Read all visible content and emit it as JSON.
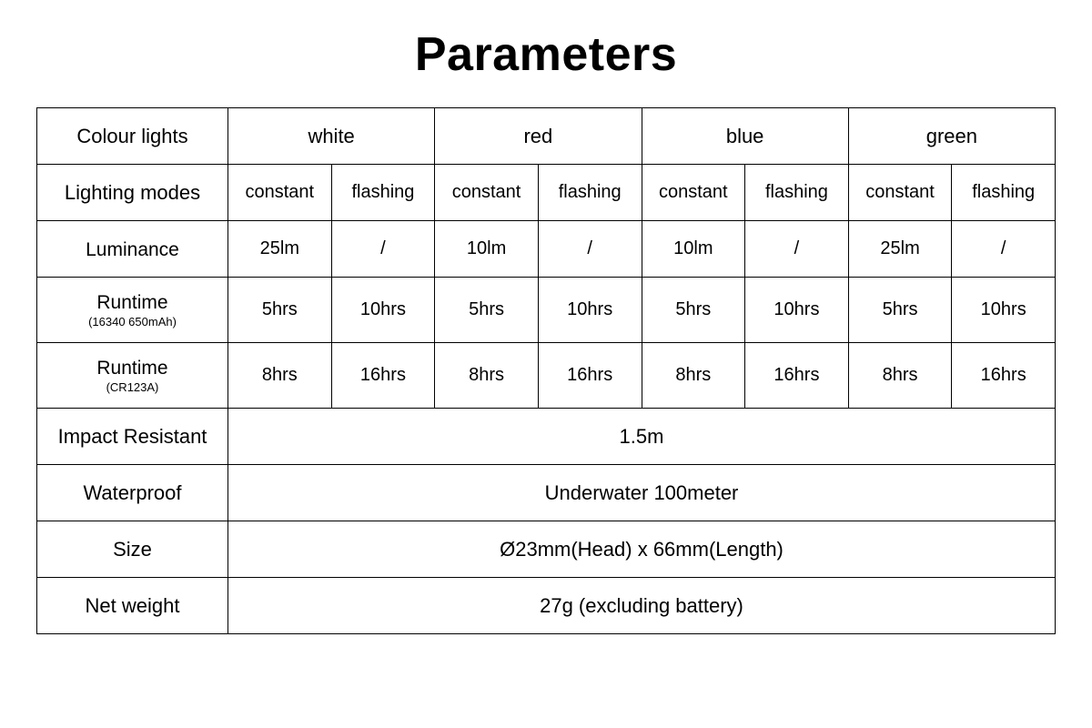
{
  "title": "Parameters",
  "table": {
    "border_color": "#000000",
    "background_color": "#ffffff",
    "text_color": "#000000",
    "title_fontsize": 52,
    "cell_fontsize": 20,
    "label_fontsize": 22,
    "colours_label": "Colour lights",
    "colours": [
      "white",
      "red",
      "blue",
      "green"
    ],
    "modes_label": "Lighting modes",
    "modes": [
      "constant",
      "flashing"
    ],
    "rows": [
      {
        "label": "Luminance",
        "sub": "",
        "values": [
          "25lm",
          "/",
          "10lm",
          "/",
          "10lm",
          "/",
          "25lm",
          "/"
        ]
      },
      {
        "label": "Runtime",
        "sub": "(16340 650mAh)",
        "values": [
          "5hrs",
          "10hrs",
          "5hrs",
          "10hrs",
          "5hrs",
          "10hrs",
          "5hrs",
          "10hrs"
        ]
      },
      {
        "label": "Runtime",
        "sub": "(CR123A)",
        "values": [
          "8hrs",
          "16hrs",
          "8hrs",
          "16hrs",
          "8hrs",
          "16hrs",
          "8hrs",
          "16hrs"
        ]
      }
    ],
    "full_rows": [
      {
        "label": "Impact Resistant",
        "value": "1.5m"
      },
      {
        "label": "Waterproof",
        "value": "Underwater 100meter"
      },
      {
        "label": "Size",
        "value": "Ø23mm(Head) x 66mm(Length)"
      },
      {
        "label": "Net weight",
        "value": "27g (excluding battery)"
      }
    ]
  }
}
